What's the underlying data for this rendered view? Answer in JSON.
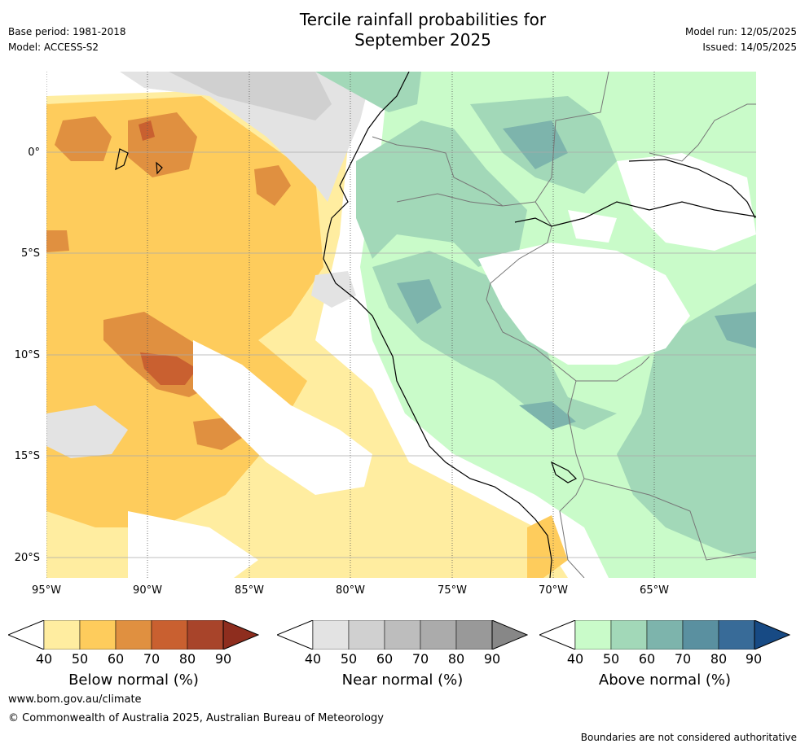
{
  "header": {
    "title_line1": "Tercile rainfall probabilities for",
    "title_line2": "September 2025",
    "base_period": "Base period: 1981-2018",
    "model": "Model: ACCESS-S2",
    "model_run": "Model run: 12/05/2025",
    "issued": "Issued: 14/05/2025"
  },
  "axes": {
    "lon_labels": [
      "95°W",
      "90°W",
      "85°W",
      "80°W",
      "75°W",
      "70°W",
      "65°W"
    ],
    "lat_labels": [
      "0°",
      "5°S",
      "10°S",
      "15°S",
      "20°S"
    ]
  },
  "legend": {
    "below": {
      "label": "Below normal (%)",
      "colors": [
        "#ffeda0",
        "#fecc5c",
        "#e09040",
        "#c96030",
        "#a8442a",
        "#8e2d1e"
      ]
    },
    "near": {
      "label": "Near normal (%)",
      "colors": [
        "#e3e3e3",
        "#d0d0d0",
        "#bdbdbd",
        "#ababab",
        "#999999",
        "#878787"
      ]
    },
    "above": {
      "label": "Above normal (%)",
      "colors": [
        "#c9fbc9",
        "#a2d8b8",
        "#7db4ac",
        "#5a90a0",
        "#386b98",
        "#174a84"
      ]
    },
    "ticks": [
      "40",
      "50",
      "60",
      "70",
      "80",
      "90"
    ]
  },
  "footer": {
    "website": "www.bom.gov.au/climate",
    "copyright": "© Commonwealth of Australia 2025, Australian Bureau of Meteorology",
    "disclaimer": "Boundaries are not considered authoritative"
  }
}
